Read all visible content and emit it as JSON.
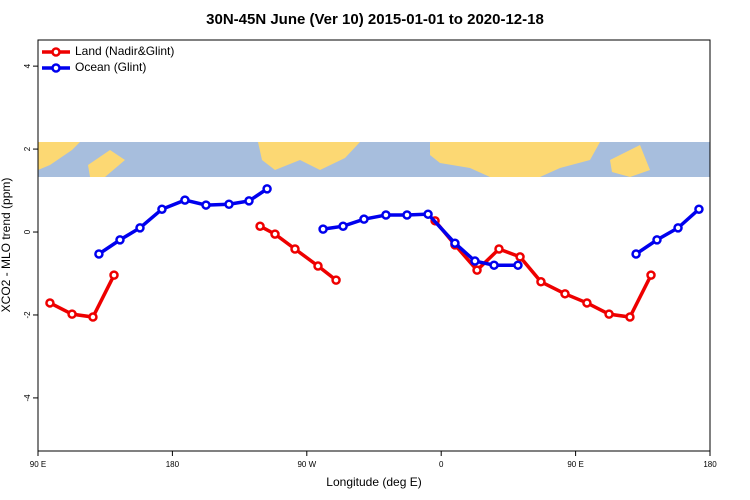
{
  "chart_data": {
    "type": "line",
    "title": "30N-45N June (Ver 10)   2015-01-01 to 2020-12-18",
    "x_label": "Longitude (deg E)",
    "y_label": "XCO2 - MLO trend (ppm)",
    "xlim": [
      90,
      540
    ],
    "xticks": [
      {
        "value": 90,
        "label": "90 E"
      },
      {
        "value": 180,
        "label": "180"
      },
      {
        "value": 270,
        "label": "90 W"
      },
      {
        "value": 360,
        "label": "0"
      },
      {
        "value": 450,
        "label": "90 E"
      },
      {
        "value": 540,
        "label": "180"
      }
    ],
    "ylim": [
      -5.28,
      4.63
    ],
    "yticks": [
      -4,
      -2,
      0,
      2,
      4
    ],
    "legend": "top-left",
    "series": [
      {
        "name": "Land (Nadir&Glint)",
        "color": "#ee0000",
        "x": [
          98.0,
          112.8,
          126.8,
          140.9,
          null,
          238.7,
          248.7,
          262.1,
          277.5,
          289.6,
          null,
          355.9,
          369.2,
          384.0,
          398.7,
          412.8,
          426.8,
          442.9,
          457.6,
          472.4,
          486.4,
          500.5
        ],
        "values": [
          -1.71,
          -1.98,
          -2.05,
          -1.04,
          null,
          0.14,
          -0.05,
          -0.41,
          -0.82,
          -1.16,
          null,
          0.27,
          -0.31,
          -0.92,
          -0.41,
          -0.6,
          -1.2,
          -1.49,
          -1.71,
          -1.98,
          -2.05,
          -1.04
        ]
      },
      {
        "name": "Ocean (Glint)",
        "color": "#0000ee",
        "x": [
          130.8,
          144.9,
          158.3,
          173.0,
          188.4,
          202.5,
          217.9,
          231.3,
          243.4,
          null,
          280.9,
          294.3,
          308.3,
          323.0,
          337.1,
          351.2,
          369.2,
          382.6,
          395.4,
          411.4,
          null,
          490.5,
          504.5,
          518.6,
          532.6
        ],
        "values": [
          -0.53,
          -0.19,
          0.1,
          0.55,
          0.77,
          0.65,
          0.67,
          0.75,
          1.04,
          null,
          0.07,
          0.14,
          0.31,
          0.41,
          0.41,
          0.43,
          -0.27,
          -0.7,
          -0.8,
          -0.8,
          null,
          -0.53,
          -0.19,
          0.1,
          0.55
        ]
      }
    ]
  }
}
